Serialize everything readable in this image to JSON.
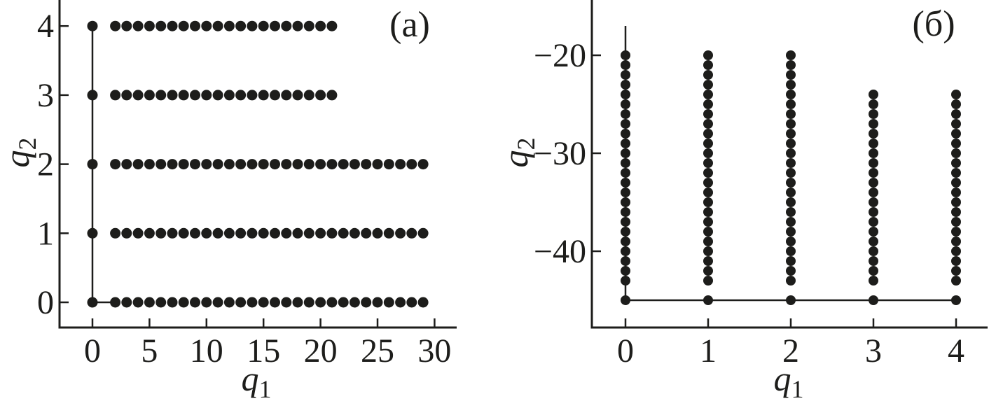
{
  "figure": {
    "background": "#ffffff",
    "ink": "#1d1d1b",
    "description": "Two-panel dot lattice scatter figure"
  },
  "chart_data": [
    {
      "type": "scatter",
      "panel_label": "(a)",
      "xlabel": {
        "base": "q",
        "sub": "1"
      },
      "ylabel": {
        "base": "q",
        "sub": "2"
      },
      "x_ticks": {
        "values": [
          0,
          5,
          10,
          15,
          20,
          25,
          30
        ],
        "labels": [
          "0",
          "5",
          "10",
          "15",
          "20",
          "25",
          "30"
        ]
      },
      "y_ticks": {
        "values": [
          0,
          1,
          2,
          3,
          4
        ],
        "labels": [
          "0",
          "1",
          "2",
          "3",
          "4"
        ]
      },
      "xlim": [
        -2.9,
        31.9
      ],
      "ylim": [
        -0.37,
        4.38
      ],
      "grid": false,
      "legend": null,
      "marker": "filled-circle",
      "series": [
        {
          "name": "boundary-column-x0",
          "points": [
            [
              0,
              0
            ],
            [
              0,
              1
            ],
            [
              0,
              2
            ],
            [
              0,
              3
            ],
            [
              0,
              4
            ]
          ]
        },
        {
          "name": "row-q2-4",
          "row": {
            "y": 4,
            "x_from": 2,
            "x_to": 21,
            "step": 1
          }
        },
        {
          "name": "row-q2-3",
          "row": {
            "y": 3,
            "x_from": 2,
            "x_to": 21,
            "step": 1
          }
        },
        {
          "name": "row-q2-2",
          "row": {
            "y": 2,
            "x_from": 2,
            "x_to": 29,
            "step": 1
          }
        },
        {
          "name": "row-q2-1",
          "row": {
            "y": 1,
            "x_from": 2,
            "x_to": 29,
            "step": 1
          }
        },
        {
          "name": "row-q2-0",
          "row": {
            "y": 0,
            "x_from": 2,
            "x_to": 29,
            "step": 1
          }
        }
      ],
      "lines": [
        {
          "name": "boundary-vertical",
          "from": [
            0,
            4
          ],
          "to": [
            0,
            0
          ]
        },
        {
          "name": "boundary-horizontal",
          "from": [
            0,
            0
          ],
          "to": [
            2,
            0
          ]
        }
      ]
    },
    {
      "type": "scatter",
      "panel_label": "(б)",
      "xlabel": {
        "base": "q",
        "sub": "1"
      },
      "ylabel": {
        "base": "q",
        "sub": "2"
      },
      "x_ticks": {
        "values": [
          0,
          1,
          2,
          3,
          4
        ],
        "labels": [
          "0",
          "1",
          "2",
          "3",
          "4"
        ]
      },
      "y_ticks": {
        "values": [
          -20,
          -30,
          -40
        ],
        "labels": [
          "−20",
          "−30",
          "−40"
        ]
      },
      "xlim": [
        -0.41,
        4.38
      ],
      "ylim": [
        -47.8,
        -14.4
      ],
      "grid": false,
      "legend": null,
      "marker": "filled-circle",
      "series": [
        {
          "name": "column-q1-0",
          "column": {
            "x": 0,
            "y_from": -20,
            "y_to": -43,
            "step": -1
          }
        },
        {
          "name": "column-q1-1",
          "column": {
            "x": 1,
            "y_from": -20,
            "y_to": -43,
            "step": -1
          }
        },
        {
          "name": "column-q1-2",
          "column": {
            "x": 2,
            "y_from": -20,
            "y_to": -43,
            "step": -1
          }
        },
        {
          "name": "column-q1-3",
          "column": {
            "x": 3,
            "y_from": -24,
            "y_to": -43,
            "step": -1
          }
        },
        {
          "name": "column-q1-4",
          "column": {
            "x": 4,
            "y_from": -24,
            "y_to": -43,
            "step": -1
          }
        },
        {
          "name": "baseline-row",
          "points": [
            [
              0,
              -45
            ],
            [
              1,
              -45
            ],
            [
              2,
              -45
            ],
            [
              3,
              -45
            ],
            [
              4,
              -45
            ]
          ]
        }
      ],
      "lines": [
        {
          "name": "boundary-vertical",
          "from": [
            0,
            -17
          ],
          "to": [
            0,
            -45
          ]
        },
        {
          "name": "boundary-horizontal",
          "from": [
            0,
            -45
          ],
          "to": [
            4,
            -45
          ]
        }
      ]
    }
  ]
}
